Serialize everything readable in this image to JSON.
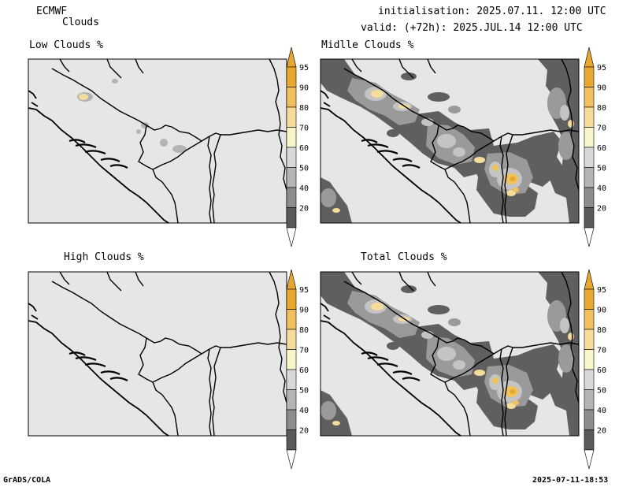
{
  "header": {
    "model": "ECMWF",
    "product": "Clouds",
    "initialisation": "initialisation: 2025.07.11. 12:00 UTC",
    "valid": "valid: (+72h): 2025.JUL.14 12:00 UTC"
  },
  "panels": [
    {
      "title": "Low Clouds %"
    },
    {
      "title": "Midlle Clouds %"
    },
    {
      "title": "High Clouds %"
    },
    {
      "title": "Total Clouds %"
    }
  ],
  "colorbar": {
    "labels": [
      "95",
      "90",
      "80",
      "70",
      "60",
      "50",
      "40",
      "20"
    ],
    "colors": [
      "#e8a830",
      "#f0c060",
      "#f5dc9a",
      "#f8f5c8",
      "#d8d8d8",
      "#b4b4b4",
      "#8c8c8c",
      "#5a5a5a"
    ]
  },
  "colors": {
    "land": "#e6e6e6",
    "dark_gray": "#5f5f5f",
    "mid_gray": "#9a9a9a",
    "light_gray": "#c4c4c4",
    "yellow": "#f0c35c",
    "orange": "#e8a830",
    "pale": "#f5dc9a"
  },
  "footer": {
    "left": "GrADS/COLA",
    "right": "2025-07-11-18:53"
  }
}
